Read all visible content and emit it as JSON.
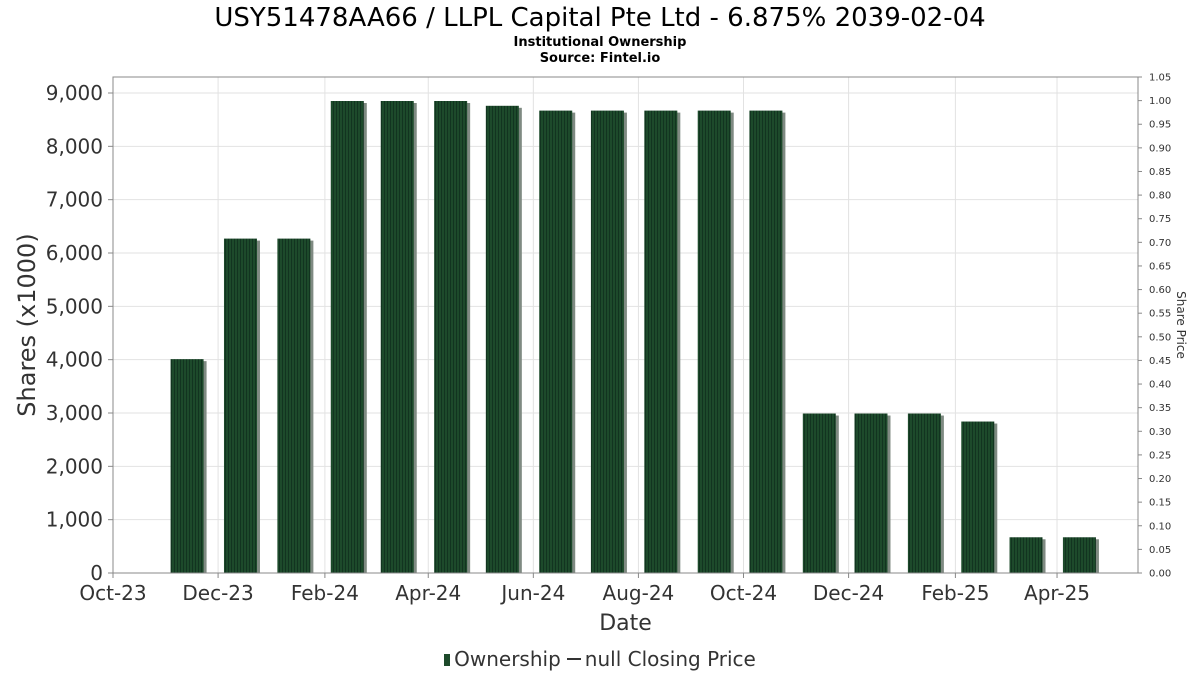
{
  "header": {
    "title": "USY51478AA66 / LLPL Capital Pte Ltd - 6.875% 2039-02-04",
    "subtitle": "Institutional Ownership",
    "source": "Source: Fintel.io"
  },
  "legend": {
    "ownership_label": "Ownership",
    "price_label": "null Closing Price"
  },
  "colors": {
    "bar": "#1d4a2b",
    "bar_shadow": "#7f8a82",
    "grid": "#e2e2e2",
    "axis": "#888888"
  },
  "chart_data": {
    "type": "bar",
    "xlabel": "Date",
    "ylabel": "Shares (x1000)",
    "y2label": "Share Price",
    "ylim": [
      0,
      9300
    ],
    "y2lim": [
      0,
      1.05
    ],
    "xlim": [
      "2023-10-01",
      "2025-05-18"
    ],
    "grid": true,
    "legend_position": "bottom",
    "yticks": [
      "0",
      "1,000",
      "2,000",
      "3,000",
      "4,000",
      "5,000",
      "6,000",
      "7,000",
      "8,000",
      "9,000"
    ],
    "y2ticks": [
      "0.00",
      "0.05",
      "0.10",
      "0.15",
      "0.20",
      "0.25",
      "0.30",
      "0.35",
      "0.40",
      "0.45",
      "0.50",
      "0.55",
      "0.60",
      "0.65",
      "0.70",
      "0.75",
      "0.80",
      "0.85",
      "0.90",
      "0.95",
      "1.00",
      "1.05"
    ],
    "xticks": [
      {
        "label": "Oct-23",
        "date": "2023-10-01"
      },
      {
        "label": "Dec-23",
        "date": "2023-12-01"
      },
      {
        "label": "Feb-24",
        "date": "2024-02-01"
      },
      {
        "label": "Apr-24",
        "date": "2024-04-01"
      },
      {
        "label": "Jun-24",
        "date": "2024-06-01"
      },
      {
        "label": "Aug-24",
        "date": "2024-08-01"
      },
      {
        "label": "Oct-24",
        "date": "2024-10-01"
      },
      {
        "label": "Dec-24",
        "date": "2024-12-01"
      },
      {
        "label": "Feb-25",
        "date": "2025-02-01"
      },
      {
        "label": "Apr-25",
        "date": "2025-04-01"
      }
    ],
    "series": [
      {
        "name": "Ownership",
        "points": [
          {
            "date": "2023-11-13",
            "value": 4010
          },
          {
            "date": "2023-12-14",
            "value": 6270
          },
          {
            "date": "2024-01-14",
            "value": 6270
          },
          {
            "date": "2024-02-14",
            "value": 8850
          },
          {
            "date": "2024-03-14",
            "value": 8850
          },
          {
            "date": "2024-04-14",
            "value": 8850
          },
          {
            "date": "2024-05-14",
            "value": 8760
          },
          {
            "date": "2024-06-14",
            "value": 8670
          },
          {
            "date": "2024-07-14",
            "value": 8670
          },
          {
            "date": "2024-08-14",
            "value": 8670
          },
          {
            "date": "2024-09-14",
            "value": 8670
          },
          {
            "date": "2024-10-14",
            "value": 8670
          },
          {
            "date": "2024-11-14",
            "value": 2990
          },
          {
            "date": "2024-12-14",
            "value": 2990
          },
          {
            "date": "2025-01-14",
            "value": 2990
          },
          {
            "date": "2025-02-14",
            "value": 2840
          },
          {
            "date": "2025-03-14",
            "value": 670
          },
          {
            "date": "2025-04-14",
            "value": 670
          }
        ]
      }
    ]
  }
}
